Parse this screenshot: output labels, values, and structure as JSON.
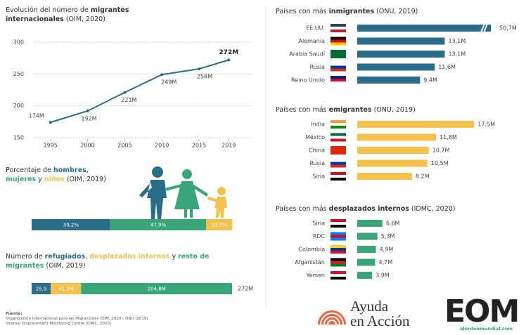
{
  "chart_data": [
    {
      "type": "line",
      "title": [
        "Evolución del número de ",
        "migrantes internacionales",
        " (OIM, 2020)"
      ],
      "x": [
        1995,
        2000,
        2005,
        2010,
        2015,
        2019
      ],
      "values": [
        174,
        192,
        221,
        249,
        258,
        272
      ],
      "value_labels": [
        "174M",
        "192M",
        "221M",
        "249M",
        "258M",
        "272M"
      ],
      "color": "#2b6c8a",
      "xlim": [
        1992,
        2022
      ],
      "xticks": [
        1995,
        2000,
        2005,
        2010,
        2015,
        2019
      ],
      "ylim": [
        150,
        300
      ],
      "yticks": [
        150,
        200,
        250,
        300
      ],
      "grid": true
    },
    {
      "type": "stacked_bar",
      "title": [
        "Porcentaje de ",
        "hombres",
        ", ",
        "mujeres",
        " y ",
        "niños",
        " (OIM, 2019)"
      ],
      "xlim": [
        0,
        100
      ],
      "series": [
        {
          "color": "#2b6c8a",
          "values": [
            39.2
          ],
          "value_labels": [
            "39,2%"
          ]
        },
        {
          "color": "#3ba57a",
          "values": [
            47.9
          ],
          "value_labels": [
            "47,9%"
          ]
        },
        {
          "color": "#f2c14e",
          "values": [
            13.0
          ],
          "value_labels": [
            "13,0%"
          ]
        }
      ]
    },
    {
      "type": "stacked_bar",
      "title": [
        "Número de ",
        "refugiados",
        ", ",
        "desplazados internos",
        " y ",
        "resto de migrantes",
        " (OIM, 2019)"
      ],
      "xlim": [
        0,
        272
      ],
      "total_label": "272M",
      "series": [
        {
          "color": "#2b6c8a",
          "values": [
            25.9
          ],
          "value_labels": [
            "25,9"
          ]
        },
        {
          "color": "#f2c14e",
          "values": [
            41.3
          ],
          "value_labels": [
            "41,3M"
          ]
        },
        {
          "color": "#3ba57a",
          "values": [
            204.8
          ],
          "value_labels": [
            "204,8M"
          ]
        }
      ]
    },
    {
      "type": "hbar",
      "title": [
        "Países con más ",
        "inmigrantes",
        " (ONU, 2019)"
      ],
      "categories": [
        "EE.UU.",
        "Alemania",
        "Arabia Saudí",
        "Rusia",
        "Reino Unido"
      ],
      "values": [
        50.7,
        13.1,
        13.1,
        11.6,
        9.4
      ],
      "value_labels": [
        "50,7M",
        "13,1M",
        "13,1M",
        "11,6M",
        "9,4M"
      ],
      "color": "#2b6c8a",
      "xlim": [
        0,
        20
      ],
      "broken_axis": true
    },
    {
      "type": "hbar",
      "title": [
        "Países con más ",
        "emigrantes",
        " (ONU, 2019)"
      ],
      "categories": [
        "India",
        "México",
        "China",
        "Rusia",
        "Siria"
      ],
      "values": [
        17.5,
        11.8,
        10.7,
        10.5,
        8.2
      ],
      "value_labels": [
        "17,5M",
        "11,8M",
        "10,7M",
        "10,5M",
        "8,2M"
      ],
      "color": "#f2c14e",
      "xlim": [
        0,
        20
      ],
      "broken_axis": false
    },
    {
      "type": "hbar",
      "title": [
        "Países con más ",
        "desplazados internos",
        " (IDMC, 2020)"
      ],
      "categories": [
        "Siria",
        "RDC",
        "Colombia",
        "Afganistán",
        "Yemen"
      ],
      "values": [
        6.6,
        5.3,
        4.9,
        4.7,
        3.9
      ],
      "value_labels": [
        "6,6M",
        "5,3M",
        "4,9M",
        "4,7M",
        "3,9M"
      ],
      "color": "#3ba57a",
      "xlim": [
        0,
        35
      ],
      "broken_axis": false
    }
  ],
  "source": [
    "Fuente:",
    "Organización Internacional para las Migraciones (OIM, 2020); ONU (2019)",
    "Internal Displacement Monitoring Centre (IDMC, 2020)"
  ],
  "logos": {
    "ayuda": [
      "Ayuda",
      "en Acción"
    ],
    "eom": "EOM",
    "eom_url": "elordenmundial.com"
  }
}
